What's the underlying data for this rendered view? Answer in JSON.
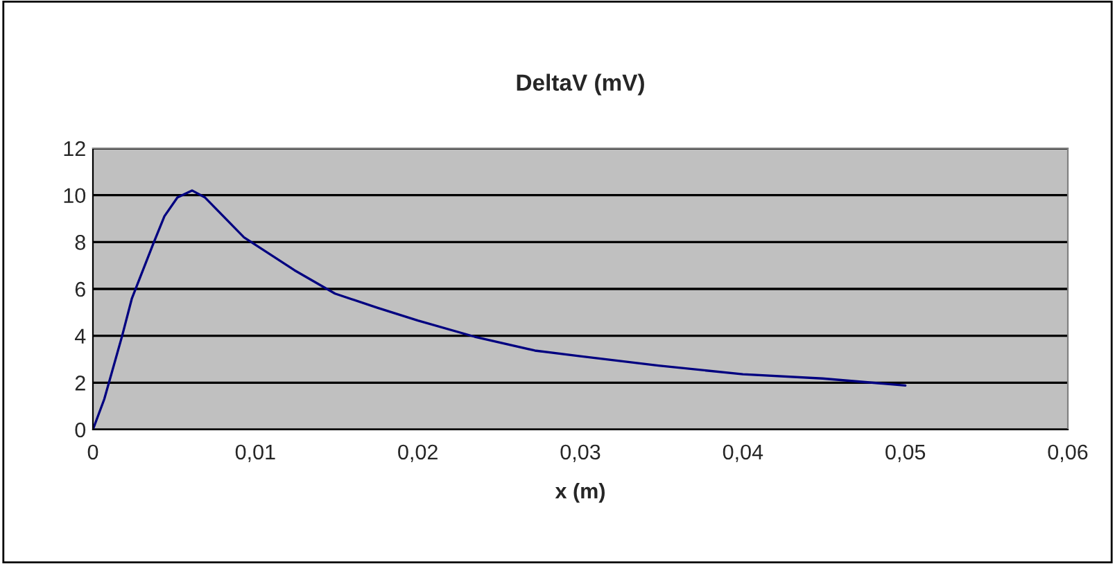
{
  "chart_data": {
    "type": "line",
    "title": "DeltaV (mV)",
    "xlabel": "x (m)",
    "series": [
      {
        "color": "#000080",
        "x": [
          0,
          0.0007,
          0.0018,
          0.0024,
          0.0037,
          0.0044,
          0.0052,
          0.0061,
          0.0069,
          0.0093,
          0.0124,
          0.0149,
          0.0175,
          0.02,
          0.0235,
          0.0272,
          0.03,
          0.0348,
          0.04,
          0.0449,
          0.05
        ],
        "values": [
          0,
          1.3,
          4.0,
          5.6,
          7.9,
          9.1,
          9.9,
          10.2,
          9.9,
          8.2,
          6.8,
          5.8,
          5.2,
          4.65,
          3.96,
          3.37,
          3.13,
          2.73,
          2.36,
          2.18,
          1.88
        ]
      }
    ],
    "xlim": [
      0,
      0.06
    ],
    "xticks": [
      0,
      {
        "value": 0.01,
        "label": "0,01"
      },
      {
        "value": 0.02,
        "label": "0,02"
      },
      {
        "value": 0.03,
        "label": "0,03"
      },
      {
        "value": 0.04,
        "label": "0,04"
      },
      {
        "value": 0.05,
        "label": "0,05"
      },
      {
        "value": 0.06,
        "label": "0,06"
      }
    ],
    "ylim": [
      0,
      12
    ],
    "yticks": [
      0,
      2,
      4,
      6,
      8,
      10,
      12
    ],
    "grid": "y",
    "legend": false,
    "marker": "none",
    "line_style": "solid"
  }
}
